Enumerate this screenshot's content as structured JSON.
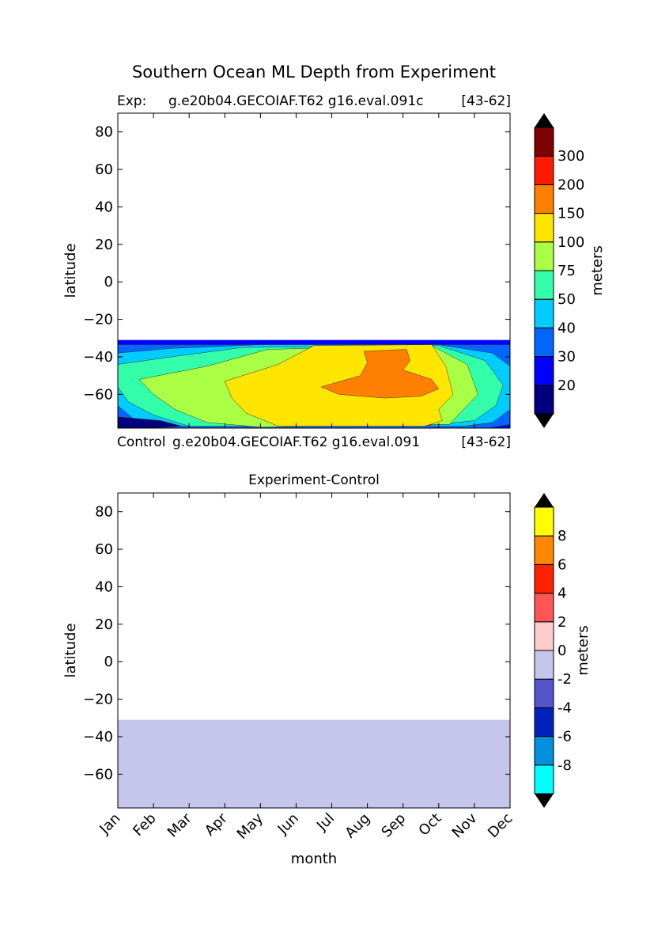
{
  "figure_title": "Southern Ocean ML Depth from Experiment",
  "exp_label": "Exp:",
  "exp_case": "g.e20b04.GECOIAF.T62 g16.eval.091c",
  "exp_years": "[43-62]",
  "control_label": "Control",
  "control_case": "g.e20b04.GECOIAF.T62 g16.eval.091",
  "control_years": "[43-62]",
  "chart_data": [
    {
      "type": "heatmap",
      "subtitle": "",
      "xlabel": "",
      "ylabel": "latitude",
      "x_ticks": [],
      "y_ticks": [
        "80",
        "60",
        "40",
        "20",
        "0",
        "−20",
        "−40",
        "−60"
      ],
      "y_tick_values": [
        80,
        60,
        40,
        20,
        0,
        -20,
        -40,
        -60
      ],
      "ylim": [
        -78,
        90
      ],
      "xlim": [
        0,
        11
      ],
      "data_lat_range": [
        -78,
        -31
      ],
      "colorbar_label": "meters",
      "colorbar_levels": [
        "20",
        "30",
        "40",
        "50",
        "75",
        "100",
        "150",
        "200",
        "300"
      ],
      "colorbar_colors": [
        "#00007f",
        "#0000ff",
        "#0066ff",
        "#00ccff",
        "#33ffaa",
        "#aaff44",
        "#ffe600",
        "#ff7f00",
        "#ff1a00",
        "#7f0000"
      ],
      "colorbar_extend": "both",
      "grid": false,
      "contour_bands_description_levels_m": [
        {
          "min": 100,
          "max": 150,
          "months": "Apr-Oct",
          "lat": [
            -72,
            -33
          ]
        },
        {
          "min": 150,
          "max": 200,
          "months": "Jul-Sep",
          "lat": [
            -62,
            -36
          ]
        }
      ]
    },
    {
      "type": "heatmap",
      "subtitle": "Experiment-Control",
      "xlabel": "month",
      "ylabel": "latitude",
      "x_ticks": [
        "Jan",
        "Feb",
        "Mar",
        "Apr",
        "May",
        "Jun",
        "Jul",
        "Aug",
        "Sep",
        "Oct",
        "Nov",
        "Dec"
      ],
      "y_ticks": [
        "80",
        "60",
        "40",
        "20",
        "0",
        "−20",
        "−40",
        "−60"
      ],
      "y_tick_values": [
        80,
        60,
        40,
        20,
        0,
        -20,
        -40,
        -60
      ],
      "ylim": [
        -78,
        90
      ],
      "xlim": [
        0,
        11
      ],
      "data_lat_range": [
        -78,
        -31
      ],
      "uniform_value_range": [
        -2,
        0
      ],
      "colorbar_label": "meters",
      "colorbar_levels": [
        "-8",
        "-6",
        "-4",
        "-2",
        "0",
        "2",
        "4",
        "6",
        "8"
      ],
      "colorbar_colors": [
        "#00ffff",
        "#0090dd",
        "#0022bb",
        "#5555cc",
        "#c6c6ec",
        "#ffcccc",
        "#ff5555",
        "#ff2200",
        "#ff8800",
        "#ffff00"
      ],
      "colorbar_extend": "both",
      "grid": false
    }
  ]
}
